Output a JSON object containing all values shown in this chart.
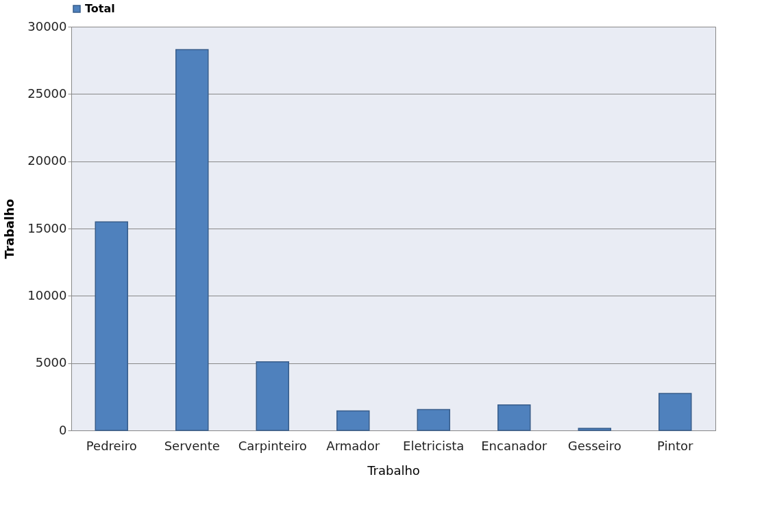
{
  "chart_data": {
    "type": "bar",
    "xlabel": "Trabalho",
    "ylabel": "Trabalho",
    "categories": [
      "Pedreiro",
      "Servente",
      "Carpinteiro",
      "Armador",
      "Eletricista",
      "Encanador",
      "Gesseiro",
      "Pintor"
    ],
    "series": [
      {
        "name": "Total",
        "color": "#4f81bd",
        "values": [
          15500,
          28300,
          5100,
          1450,
          1550,
          1900,
          150,
          2750
        ]
      }
    ],
    "ylim": [
      0,
      30000
    ],
    "yticks": [
      0,
      5000,
      10000,
      15000,
      20000,
      25000,
      30000
    ],
    "grid": "y",
    "legend": "top"
  }
}
